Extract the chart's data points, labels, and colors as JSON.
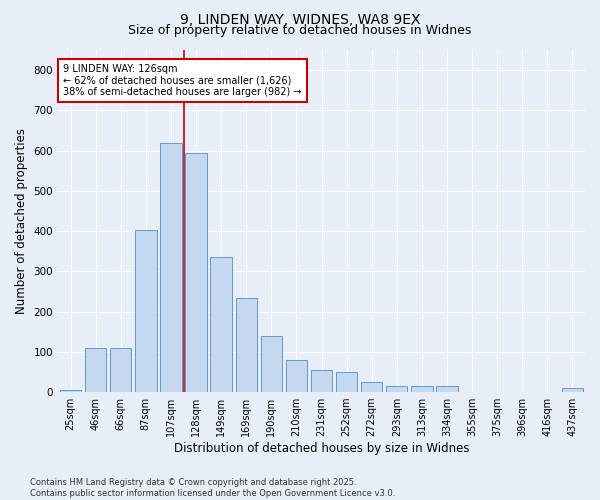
{
  "title_line1": "9, LINDEN WAY, WIDNES, WA8 9EX",
  "title_line2": "Size of property relative to detached houses in Widnes",
  "xlabel": "Distribution of detached houses by size in Widnes",
  "ylabel": "Number of detached properties",
  "categories": [
    "25sqm",
    "46sqm",
    "66sqm",
    "87sqm",
    "107sqm",
    "128sqm",
    "149sqm",
    "169sqm",
    "190sqm",
    "210sqm",
    "231sqm",
    "252sqm",
    "272sqm",
    "293sqm",
    "313sqm",
    "334sqm",
    "355sqm",
    "375sqm",
    "396sqm",
    "416sqm",
    "437sqm"
  ],
  "bar_heights": [
    5,
    110,
    110,
    403,
    620,
    595,
    335,
    235,
    140,
    80,
    55,
    50,
    25,
    15,
    15,
    15,
    0,
    0,
    0,
    0,
    10
  ],
  "bar_color": "#c5d8f0",
  "bar_edge_color": "#5b9bd5",
  "vline_color": "#cc0000",
  "annotation_title": "9 LINDEN WAY: 126sqm",
  "annotation_line2": "← 62% of detached houses are smaller (1,626)",
  "annotation_line3": "38% of semi-detached houses are larger (982) →",
  "annotation_box_edge": "#cc0000",
  "ylim": [
    0,
    850
  ],
  "yticks": [
    0,
    100,
    200,
    300,
    400,
    500,
    600,
    700,
    800
  ],
  "footer_line1": "Contains HM Land Registry data © Crown copyright and database right 2025.",
  "footer_line2": "Contains public sector information licensed under the Open Government Licence v3.0.",
  "background_color": "#e8eef7",
  "grid_color": "#ffffff",
  "title_fontsize": 10,
  "subtitle_fontsize": 9,
  "axis_fontsize": 8,
  "footer_fontsize": 6
}
